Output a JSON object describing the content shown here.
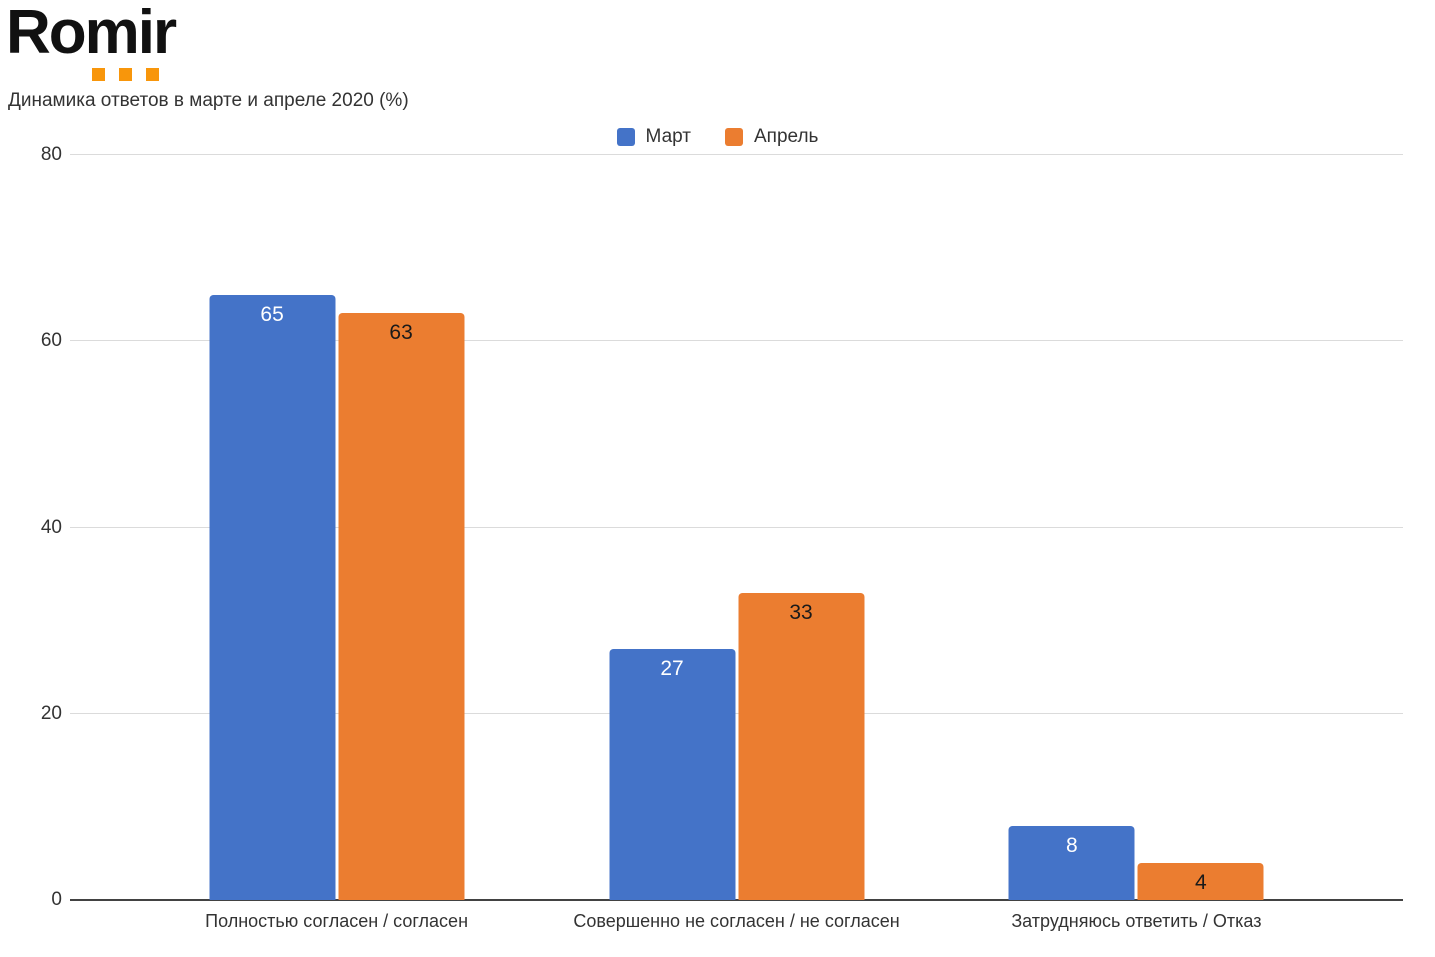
{
  "logo": {
    "text": "Romir",
    "dot_count": 3,
    "dot_color": "#F8960B"
  },
  "title": "Динамика ответов в марте и апреле 2020 (%)",
  "colors": {
    "march_blue": "#4473C8",
    "april_orange": "#EB7D30",
    "gridline": "#dbdbdb",
    "axis_line": "#424242",
    "text": "#333333"
  },
  "chart_data": {
    "type": "bar",
    "title": "Динамика ответов в марте и апреле 2020 (%)",
    "categories": [
      "Полностью согласен / согласен",
      "Совершенно не согласен / не согласен",
      "Затрудняюсь ответить / Отказ"
    ],
    "series": [
      {
        "name": "Март",
        "color": "#4473C8",
        "label_color": "#ffffff",
        "values": [
          65,
          27,
          8
        ]
      },
      {
        "name": "Апрель",
        "color": "#EB7D30",
        "label_color": "#1a1a1a",
        "values": [
          63,
          33,
          4
        ]
      }
    ],
    "xlabel": "",
    "ylabel": "",
    "ylim": [
      0,
      80
    ],
    "yticks": [
      0,
      20,
      40,
      60,
      80
    ],
    "grid": true,
    "legend_position": "top-center",
    "group_centers_pct": [
      20,
      50,
      80
    ]
  }
}
